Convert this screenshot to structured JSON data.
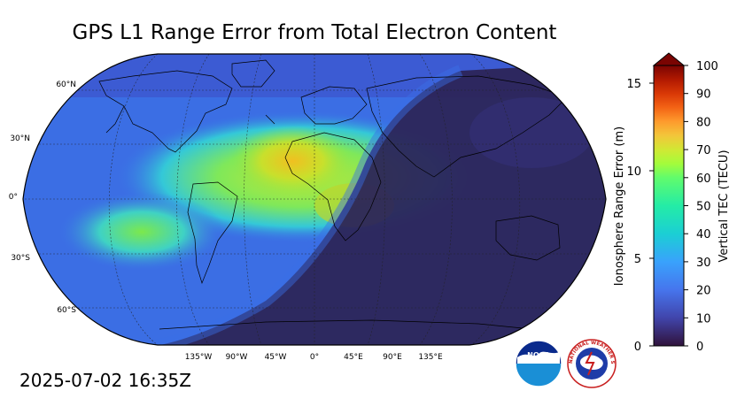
{
  "title": "GPS L1 Range Error from Total Electron Content",
  "timestamp": "2025-07-02 16:35Z",
  "map": {
    "projection": "Robinson",
    "lat_labels": [
      "60°N",
      "30°N",
      "0°",
      "30°S",
      "60°S"
    ],
    "lon_labels": [
      "135°W",
      "90°W",
      "45°W",
      "0°",
      "45°E",
      "90°E",
      "135°E"
    ],
    "gridlines": true
  },
  "colorbar": {
    "left_label": "Ionosphere Range Error (m)",
    "right_label": "Vertical TEC (TECU)",
    "left_ticks": [
      "0",
      "5",
      "10",
      "15"
    ],
    "right_ticks": [
      "0",
      "10",
      "20",
      "30",
      "40",
      "50",
      "60",
      "70",
      "80",
      "90",
      "100"
    ],
    "extend": "max",
    "colormap": "turbo"
  },
  "logos": {
    "noaa_text": "NOAA",
    "nws_text": "NATIONAL WEATHER SERVICE"
  },
  "colors": {
    "night_side": "#2b2458",
    "day_background": "#3a6fe6",
    "tec_peak": "#b8e635"
  }
}
